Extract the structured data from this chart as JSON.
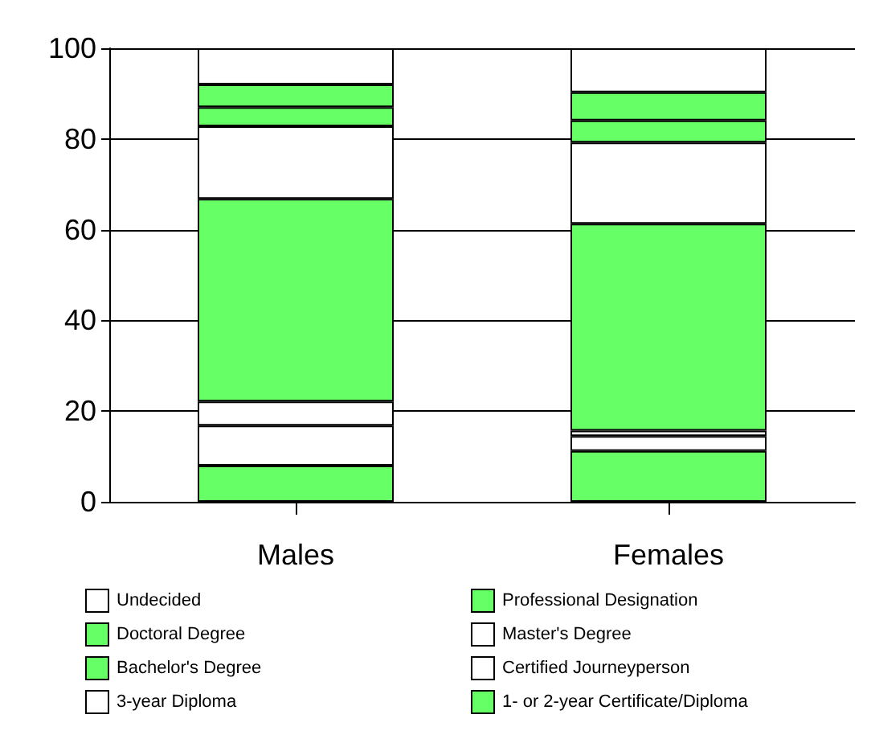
{
  "chart_data": {
    "type": "bar",
    "stacked": true,
    "categories": [
      "Males",
      "Females"
    ],
    "series": [
      {
        "name": "1- or 2-year Certificate/Diploma",
        "color": "#66ff66",
        "values": [
          8,
          11.2
        ]
      },
      {
        "name": "3-year Diploma",
        "color": "#ffffff",
        "values": [
          8.8,
          3.3
        ]
      },
      {
        "name": "Certified Journeyperson",
        "color": "#ffffff",
        "values": [
          5.3,
          1.2
        ]
      },
      {
        "name": "Bachelor's Degree",
        "color": "#66ff66",
        "values": [
          44.7,
          45.6
        ]
      },
      {
        "name": "Master's Degree",
        "color": "#ffffff",
        "values": [
          16,
          17.9
        ]
      },
      {
        "name": "Doctoral Degree",
        "color": "#66ff66",
        "values": [
          4.2,
          4.9
        ]
      },
      {
        "name": "Professional Designation",
        "color": "#66ff66",
        "values": [
          5,
          6.2
        ]
      },
      {
        "name": "Undecided",
        "color": "#ffffff",
        "values": [
          8,
          9.7
        ]
      }
    ],
    "ylim": [
      0,
      100
    ],
    "yticks": [
      0,
      20,
      40,
      60,
      80,
      100
    ],
    "grid": "y",
    "legend": "bottom"
  }
}
